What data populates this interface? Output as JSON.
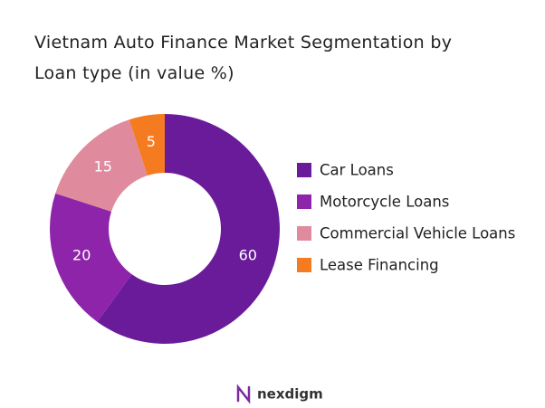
{
  "chart_data": {
    "type": "donut",
    "title": "Vietnam Auto Finance Market Segmentation by Loan type (in value %)",
    "categories": [
      "Car Loans",
      "Motorcycle Loans",
      "Commercial Vehicle Loans",
      "Lease Financing"
    ],
    "values": [
      60,
      20,
      15,
      5
    ],
    "colors": [
      "#6a1b9a",
      "#8e24aa",
      "#df8b9d",
      "#f47b20"
    ],
    "legend": "right",
    "brand": "nexdigm"
  }
}
